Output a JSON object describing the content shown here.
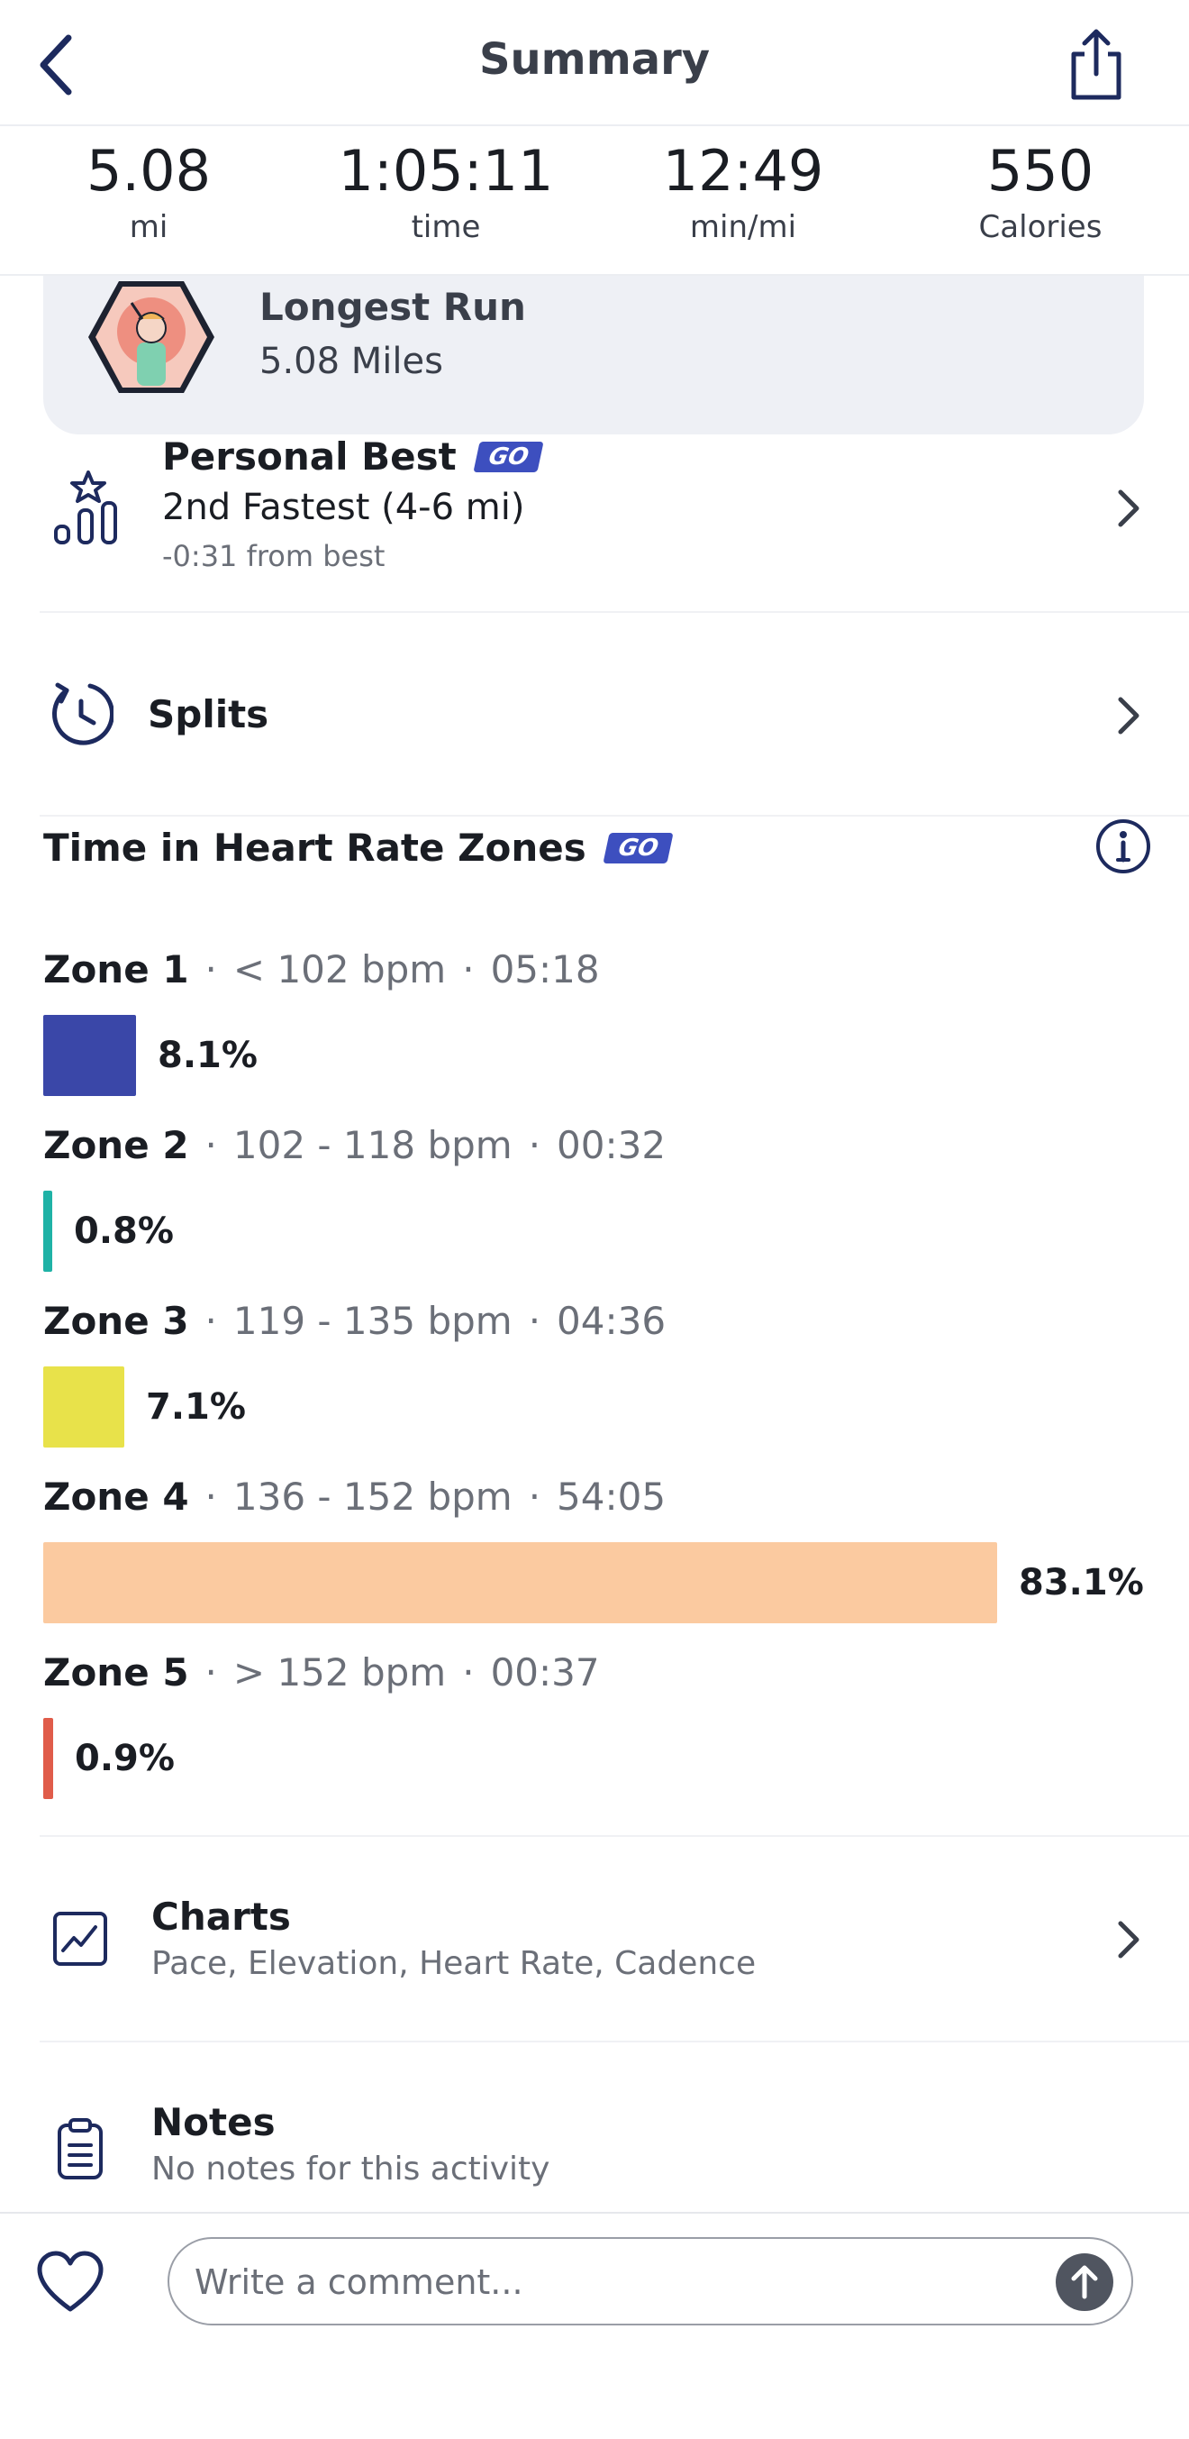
{
  "header": {
    "title": "Summary"
  },
  "stats": [
    {
      "value": "5.08",
      "label": "mi"
    },
    {
      "value": "1:05:11",
      "label": "time"
    },
    {
      "value": "12:49",
      "label": "min/mi"
    },
    {
      "value": "550",
      "label": "Calories"
    }
  ],
  "achievement": {
    "title": "Longest Run",
    "subtitle": "5.08 Miles"
  },
  "personal_best": {
    "title": "Personal Best",
    "badge": "GO",
    "subtitle": "2nd Fastest (4-6 mi)",
    "delta": "-0:31 from best"
  },
  "splits": {
    "label": "Splits"
  },
  "hr_zones": {
    "title": "Time in Heart Rate Zones",
    "badge": "GO",
    "separator": "·",
    "zones": [
      {
        "name": "Zone 1",
        "range": "< 102 bpm",
        "duration": "05:18",
        "percent_label": "8.1%",
        "percent": 8.1,
        "color": "#3a47a8"
      },
      {
        "name": "Zone 2",
        "range": "102 - 118 bpm",
        "duration": "00:32",
        "percent_label": "0.8%",
        "percent": 0.8,
        "color": "#1fb2a6"
      },
      {
        "name": "Zone 3",
        "range": "119 - 135 bpm",
        "duration": "04:36",
        "percent_label": "7.1%",
        "percent": 7.1,
        "color": "#e8e24a"
      },
      {
        "name": "Zone 4",
        "range": "136 - 152 bpm",
        "duration": "54:05",
        "percent_label": "83.1%",
        "percent": 83.1,
        "color": "#fbcaa0"
      },
      {
        "name": "Zone 5",
        "range": "> 152 bpm",
        "duration": "00:37",
        "percent_label": "0.9%",
        "percent": 0.9,
        "color": "#e05c4a"
      }
    ]
  },
  "charts": {
    "title": "Charts",
    "subtitle": "Pace, Elevation, Heart Rate, Cadence"
  },
  "notes": {
    "title": "Notes",
    "subtitle": "No notes for this activity"
  },
  "comment": {
    "placeholder": "Write a comment..."
  },
  "colors": {
    "accent": "#1d2a5e",
    "go_badge": "#3d4fbf"
  }
}
